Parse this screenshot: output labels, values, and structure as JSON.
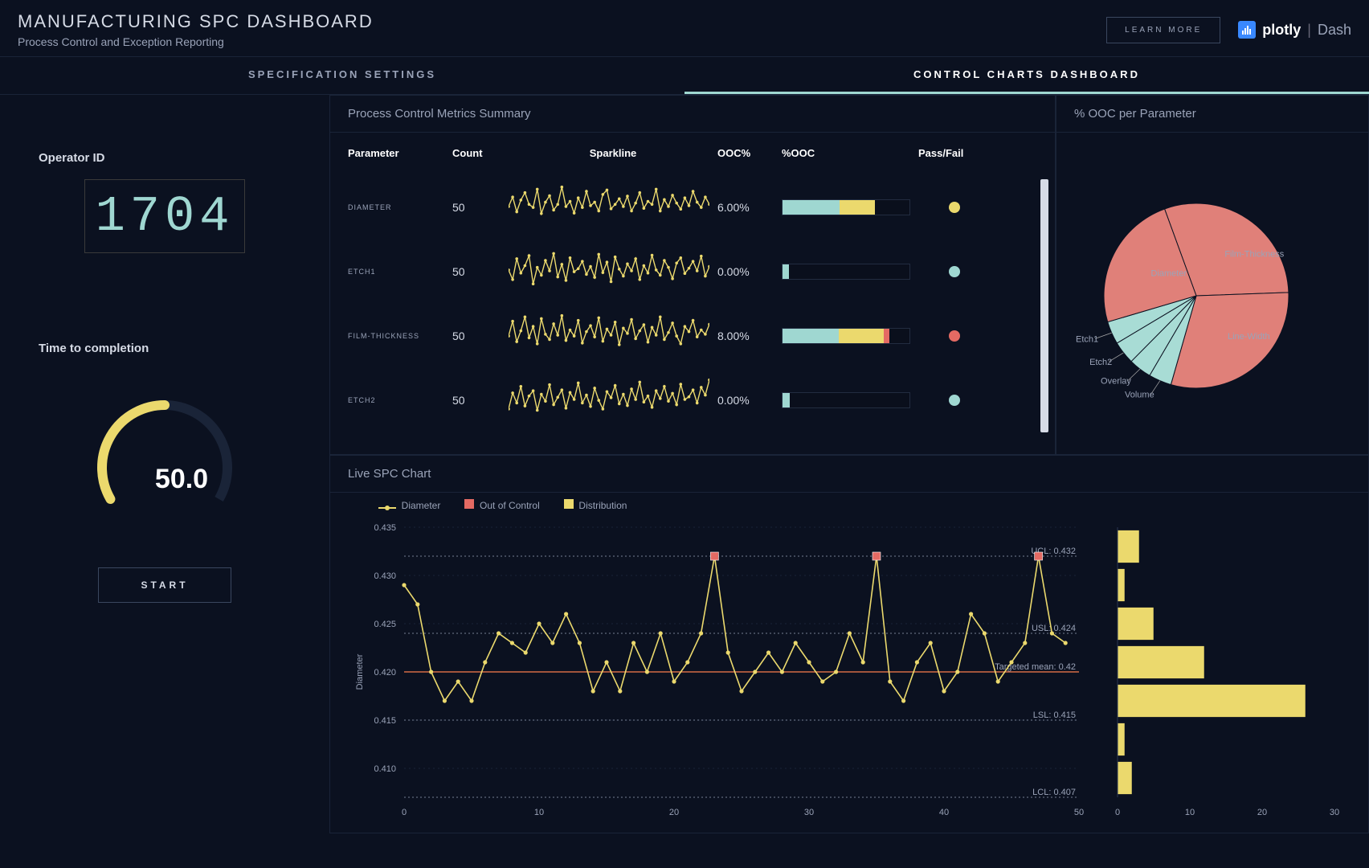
{
  "header": {
    "title": "MANUFACTURING SPC DASHBOARD",
    "subtitle": "Process Control and Exception Reporting",
    "learn_more": "LEARN MORE",
    "brand_primary": "plotly",
    "brand_secondary": "Dash"
  },
  "tabs": {
    "spec": "SPECIFICATION SETTINGS",
    "dash": "CONTROL CHARTS DASHBOARD",
    "active": "dash"
  },
  "sidebar": {
    "operator_label": "Operator ID",
    "operator_value": "1704",
    "ttc_label": "Time to completion",
    "gauge": {
      "value": 50.0,
      "display": "50.0",
      "max": 100,
      "arc_color": "#ebd96d",
      "arc_width": 12
    },
    "start": "START"
  },
  "metrics": {
    "title": "Process Control Metrics Summary",
    "columns": [
      "Parameter",
      "Count",
      "Sparkline",
      "OOC%",
      "%OOC",
      "Pass/Fail"
    ],
    "rows": [
      {
        "param": "DIAMETER",
        "count": 50,
        "ooc": "6.00%",
        "spark": [
          0.5,
          0.72,
          0.38,
          0.65,
          0.82,
          0.55,
          0.48,
          0.9,
          0.34,
          0.6,
          0.75,
          0.42,
          0.55,
          0.95,
          0.5,
          0.62,
          0.35,
          0.7,
          0.48,
          0.85,
          0.52,
          0.6,
          0.4,
          0.78,
          0.88,
          0.45,
          0.55,
          0.68,
          0.5,
          0.74,
          0.4,
          0.58,
          0.82,
          0.46,
          0.62,
          0.55,
          0.9,
          0.4,
          0.66,
          0.5,
          0.76,
          0.58,
          0.44,
          0.7,
          0.52,
          0.85,
          0.6,
          0.48,
          0.72,
          0.55
        ],
        "bar_segments": [
          [
            "#9fd7d1",
            0.45
          ],
          [
            "#ebd96d",
            0.28
          ]
        ],
        "dot": "#ebd96d"
      },
      {
        "param": "ETCH1",
        "count": 50,
        "ooc": "0.00%",
        "spark": [
          0.52,
          0.3,
          0.78,
          0.45,
          0.62,
          0.85,
          0.2,
          0.58,
          0.4,
          0.74,
          0.5,
          0.9,
          0.36,
          0.65,
          0.28,
          0.8,
          0.48,
          0.55,
          0.72,
          0.42,
          0.6,
          0.35,
          0.88,
          0.46,
          0.7,
          0.25,
          0.82,
          0.54,
          0.38,
          0.66,
          0.5,
          0.78,
          0.3,
          0.62,
          0.45,
          0.86,
          0.52,
          0.4,
          0.74,
          0.58,
          0.32,
          0.68,
          0.8,
          0.44,
          0.56,
          0.72,
          0.5,
          0.84,
          0.38,
          0.6
        ],
        "bar_segments": [
          [
            "#9fd7d1",
            0.05
          ]
        ],
        "dot": "#9fd7d1"
      },
      {
        "param": "FILM-THICKNESS",
        "count": 50,
        "ooc": "8.00%",
        "spark": [
          0.48,
          0.82,
          0.35,
          0.6,
          0.92,
          0.44,
          0.7,
          0.3,
          0.88,
          0.52,
          0.4,
          0.76,
          0.5,
          0.95,
          0.38,
          0.62,
          0.48,
          0.84,
          0.32,
          0.58,
          0.72,
          0.46,
          0.9,
          0.36,
          0.64,
          0.5,
          0.8,
          0.28,
          0.66,
          0.54,
          0.86,
          0.42,
          0.6,
          0.74,
          0.34,
          0.68,
          0.5,
          0.92,
          0.4,
          0.56,
          0.78,
          0.48,
          0.3,
          0.7,
          0.58,
          0.84,
          0.46,
          0.62,
          0.52,
          0.75
        ],
        "bar_segments": [
          [
            "#9fd7d1",
            0.44
          ],
          [
            "#ebd96d",
            0.36
          ],
          [
            "#e46a63",
            0.04
          ]
        ],
        "dot": "#e46a63"
      },
      {
        "param": "ETCH2",
        "count": 50,
        "ooc": "0.00%",
        "spark": [
          0.28,
          0.65,
          0.42,
          0.8,
          0.35,
          0.58,
          0.7,
          0.25,
          0.62,
          0.46,
          0.84,
          0.38,
          0.55,
          0.72,
          0.3,
          0.66,
          0.5,
          0.88,
          0.42,
          0.6,
          0.34,
          0.76,
          0.48,
          0.28,
          0.68,
          0.54,
          0.82,
          0.4,
          0.62,
          0.36,
          0.74,
          0.5,
          0.9,
          0.44,
          0.58,
          0.32,
          0.7,
          0.52,
          0.8,
          0.46,
          0.64,
          0.38,
          0.85,
          0.5,
          0.56,
          0.72,
          0.42,
          0.78,
          0.6,
          0.95
        ],
        "bar_segments": [
          [
            "#9fd7d1",
            0.06
          ]
        ],
        "dot": "#9fd7d1"
      }
    ],
    "spark_color": "#ebd96d"
  },
  "pie": {
    "title": "% OOC per Parameter",
    "slices": [
      {
        "label": "Film-Thickness",
        "value": 30,
        "color": "#e08079"
      },
      {
        "label": "Line-Width",
        "value": 30,
        "color": "#e08079"
      },
      {
        "label": "Volume",
        "value": 4,
        "color": "#a8dcd5"
      },
      {
        "label": "Overlay",
        "value": 4,
        "color": "#a8dcd5"
      },
      {
        "label": "Etch2",
        "value": 4,
        "color": "#a8dcd5"
      },
      {
        "label": "Etch1",
        "value": 4,
        "color": "#a8dcd5"
      },
      {
        "label": "Diameter",
        "value": 24,
        "color": "#e08079"
      }
    ]
  },
  "live": {
    "title": "Live SPC Chart",
    "legend": {
      "series": "Diameter",
      "ooc": "Out of Control",
      "dist": "Distribution"
    },
    "series_color": "#ebd96d",
    "ooc_color": "#e46a63",
    "mean_color": "#d46a44",
    "ylabel": "Diameter",
    "xlim": [
      0,
      50
    ],
    "ylim": [
      0.407,
      0.435
    ],
    "yticks": [
      0.41,
      0.415,
      0.42,
      0.425,
      0.43,
      0.435
    ],
    "xticks": [
      0,
      10,
      20,
      30,
      40,
      50
    ],
    "lines": {
      "ucl": {
        "y": 0.432,
        "label": "UCL: 0.432"
      },
      "usl": {
        "y": 0.424,
        "label": "USL: 0.424"
      },
      "mean": {
        "y": 0.42,
        "label": "Targeted mean: 0.42"
      },
      "lsl": {
        "y": 0.415,
        "label": "LSL: 0.415"
      },
      "lcl": {
        "y": 0.407,
        "label": "LCL: 0.407"
      }
    },
    "data": [
      0.429,
      0.427,
      0.42,
      0.417,
      0.419,
      0.417,
      0.421,
      0.424,
      0.423,
      0.422,
      0.425,
      0.423,
      0.426,
      0.423,
      0.418,
      0.421,
      0.418,
      0.423,
      0.42,
      0.424,
      0.419,
      0.421,
      0.424,
      0.432,
      0.422,
      0.418,
      0.42,
      0.422,
      0.42,
      0.423,
      0.421,
      0.419,
      0.42,
      0.424,
      0.421,
      0.432,
      0.419,
      0.417,
      0.421,
      0.423,
      0.418,
      0.42,
      0.426,
      0.424,
      0.419,
      0.421,
      0.423,
      0.432,
      0.424,
      0.423
    ],
    "ooc_idx": [
      23,
      35,
      47
    ],
    "hist": {
      "bins": [
        0.409,
        0.413,
        0.417,
        0.421,
        0.425,
        0.429,
        0.433
      ],
      "counts": [
        2,
        1,
        26,
        12,
        5,
        1,
        3
      ],
      "xticks": [
        0,
        10,
        20,
        30
      ],
      "color": "#ebd96d"
    }
  },
  "colors": {
    "bg": "#0b1120",
    "panel_border": "#1a2438",
    "grid": "#2a3550",
    "muted": "#9aa3b8"
  }
}
